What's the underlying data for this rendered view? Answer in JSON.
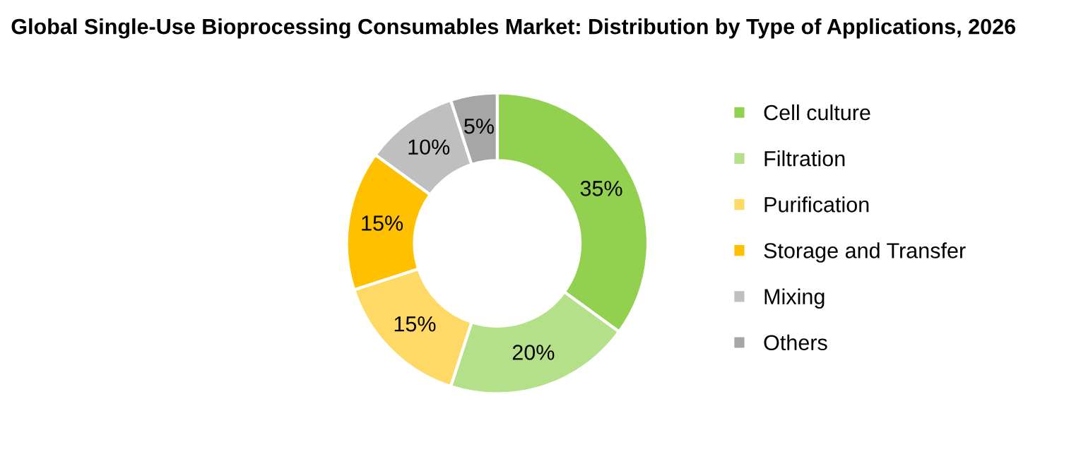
{
  "chart_data": {
    "type": "donut",
    "title": "Global Single-Use Bioprocessing Consumables Market: Distribution by Type of Applications, 2026",
    "categories": [
      "Cell culture",
      "Filtration",
      "Purification",
      "Storage and Transfer",
      "Mixing",
      "Others"
    ],
    "values": [
      35,
      20,
      15,
      15,
      10,
      5
    ],
    "colors": [
      "#92d050",
      "#b4e08a",
      "#ffd966",
      "#ffc000",
      "#bfbfbf",
      "#a6a6a6"
    ],
    "value_labels": [
      "35%",
      "20%",
      "15%",
      "15%",
      "10%",
      "5%"
    ],
    "legend": "right"
  }
}
